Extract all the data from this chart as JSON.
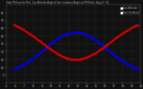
{
  "title": "Solar PV/Inverter Perf - Sun Altitude Angle & Sun Incidence Angle on PV Panels",
  "title_date": "Aug 21 '14",
  "bg_color": "#111111",
  "plot_bg": "#111111",
  "grid_color": "#555555",
  "text_color": "#bbbbbb",
  "alt_color": "#0000ee",
  "inc_color": "#dd0000",
  "legend_bg": "#111111",
  "x_start": 5,
  "x_end": 20,
  "x_ticks": [
    5,
    6,
    7,
    8,
    9,
    10,
    11,
    12,
    13,
    14,
    15,
    16,
    17,
    18,
    19,
    20
  ],
  "y_min": -10,
  "y_max": 90,
  "y_ticks": [
    0,
    10,
    20,
    30,
    40,
    50,
    60,
    70,
    80
  ],
  "solar_noon": 12.75,
  "sunrise": 5.8,
  "sunset": 19.7,
  "alt_peak": 55,
  "alt_sigma": 3.5,
  "inc_base": 20,
  "inc_amplitude": 55,
  "inc_sigma": 3.8,
  "num_points": 200,
  "alt_label": "Sun Altitude",
  "inc_label": "Sun Incidence",
  "marker_size": 1.0
}
